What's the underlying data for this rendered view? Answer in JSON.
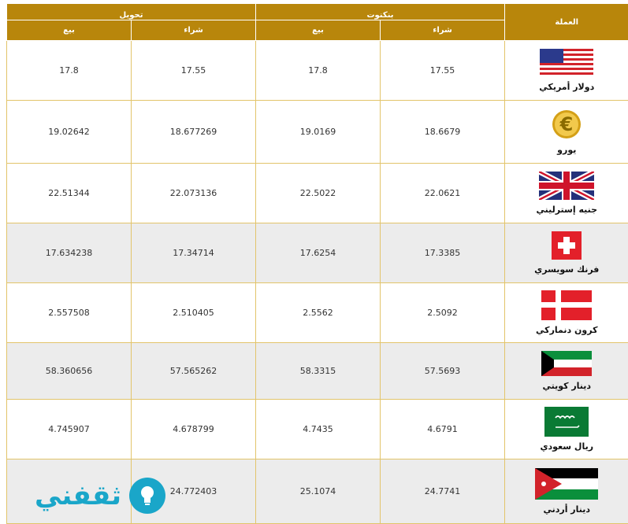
{
  "headers": {
    "currency": "العملة",
    "bank_group": "بنكنوت",
    "transfer_group": "تحويل",
    "buy": "شراء",
    "sell": "بيع"
  },
  "rows": [
    {
      "name": "دولار أمريكي",
      "flag_icon": "us-flag-icon",
      "banknote_buy": "17.55",
      "banknote_sell": "17.8",
      "transfer_buy": "17.55",
      "transfer_sell": "17.8"
    },
    {
      "name": "يورو",
      "flag_icon": "euro-sign-icon",
      "banknote_buy": "18.6679",
      "banknote_sell": "19.0169",
      "transfer_buy": "18.677269",
      "transfer_sell": "19.02642"
    },
    {
      "name": "جنيه إسترليني",
      "flag_icon": "uk-flag-icon",
      "banknote_buy": "22.0621",
      "banknote_sell": "22.5022",
      "transfer_buy": "22.073136",
      "transfer_sell": "22.51344"
    },
    {
      "name": "فرنك سويسري",
      "flag_icon": "swiss-flag-icon",
      "banknote_buy": "17.3385",
      "banknote_sell": "17.6254",
      "transfer_buy": "17.34714",
      "transfer_sell": "17.634238"
    },
    {
      "name": "كرون دنماركي",
      "flag_icon": "denmark-flag-icon",
      "banknote_buy": "2.5092",
      "banknote_sell": "2.5562",
      "transfer_buy": "2.510405",
      "transfer_sell": "2.557508"
    },
    {
      "name": "دينار كويتي",
      "flag_icon": "kuwait-flag-icon",
      "banknote_buy": "57.5693",
      "banknote_sell": "58.3315",
      "transfer_buy": "57.565262",
      "transfer_sell": "58.360656"
    },
    {
      "name": "ريال سعودي",
      "flag_icon": "saudi-flag-icon",
      "banknote_buy": "4.6791",
      "banknote_sell": "4.7435",
      "transfer_buy": "4.678799",
      "transfer_sell": "4.745907"
    },
    {
      "name": "دينار أردني",
      "flag_icon": "jordan-flag-icon",
      "banknote_buy": "24.7741",
      "banknote_sell": "25.1074",
      "transfer_buy": "24.772403",
      "transfer_sell": ""
    }
  ],
  "logo": {
    "text": "ثقفني",
    "icon": "lightbulb-icon"
  },
  "colors": {
    "header_bg": "#b8860b",
    "row_border": "#e2c46a",
    "alt_row": "#ececec",
    "logo": "#1aa6c9"
  }
}
